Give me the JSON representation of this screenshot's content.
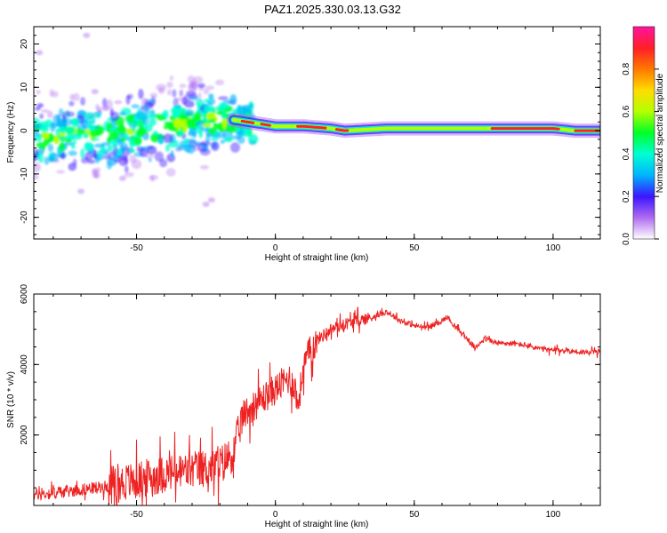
{
  "figure_title": "PAZ1.2025.330.03.13.G32",
  "chart_data": [
    {
      "type": "heatmap",
      "title": "PAZ1.2025.330.03.13.G32",
      "xlabel": "Height of straight line (km)",
      "ylabel": "Frequency (Hz)",
      "xlim": [
        -87,
        117
      ],
      "ylim": [
        -25,
        24
      ],
      "xticks": [
        -50,
        0,
        50,
        100
      ],
      "xtick_labels": [
        "-50",
        "0",
        "50",
        "100"
      ],
      "yticks": [
        -20,
        -10,
        0,
        10,
        20
      ],
      "ytick_labels": [
        "-20",
        "-10",
        "0",
        "10",
        "20"
      ],
      "grid": false,
      "ridge": {
        "description_points_x": [
          -87,
          -60,
          -40,
          -30,
          -20,
          -15,
          -10,
          -5,
          0,
          5,
          10,
          20,
          25,
          40,
          60,
          80,
          100,
          108,
          117
        ],
        "frequency_hz": [
          -1.5,
          -1,
          1,
          2,
          3,
          2.5,
          2,
          1.5,
          1,
          1,
          1,
          0.5,
          0,
          0.5,
          0.5,
          0.5,
          0.5,
          0,
          0
        ]
      },
      "colorbar": {
        "label": "Normalized spectral amplitude",
        "range": [
          0,
          1
        ],
        "ticks": [
          0.0,
          0.2,
          0.4,
          0.6,
          0.8
        ],
        "tick_labels": [
          "0.0",
          "0.2",
          "0.4",
          "0.6",
          "0.8"
        ],
        "colors": [
          "#ffffff",
          "#b06cf0",
          "#3c14ff",
          "#00b4ff",
          "#00ffd2",
          "#00ff28",
          "#b4ff00",
          "#ffdc00",
          "#ff7800",
          "#ff1e28",
          "#ff14a0"
        ]
      }
    },
    {
      "type": "line",
      "title": "",
      "xlabel": "Height of straight line (km)",
      "ylabel": "SNR (10 * v/v)",
      "xlim": [
        -87,
        117
      ],
      "ylim": [
        0,
        6000
      ],
      "xticks": [
        -50,
        0,
        50,
        100
      ],
      "xtick_labels": [
        "-50",
        "0",
        "50",
        "100"
      ],
      "yticks": [
        2000,
        4000,
        6000
      ],
      "ytick_labels": [
        "2000",
        "4000",
        "6000"
      ],
      "series": [
        {
          "name": "SNR",
          "color": "#ee2222",
          "x": [
            -87,
            -80,
            -70,
            -60,
            -55,
            -50,
            -45,
            -40,
            -35,
            -30,
            -25,
            -20,
            -15,
            -12,
            -10,
            -5,
            0,
            3,
            5,
            7,
            8,
            9,
            10,
            12,
            15,
            20,
            25,
            30,
            35,
            40,
            45,
            50,
            55,
            60,
            62,
            65,
            70,
            72,
            75,
            80,
            85,
            90,
            95,
            100,
            105,
            110,
            117
          ],
          "y": [
            300,
            350,
            450,
            550,
            650,
            700,
            800,
            900,
            950,
            1000,
            1050,
            1150,
            1500,
            2500,
            2700,
            3000,
            3300,
            3500,
            3600,
            3400,
            2800,
            3300,
            3900,
            4300,
            4700,
            5000,
            5150,
            5250,
            5350,
            5500,
            5250,
            5100,
            5050,
            5250,
            5350,
            5050,
            4650,
            4450,
            4750,
            4600,
            4600,
            4550,
            4450,
            4400,
            4400,
            4350,
            4350
          ]
        }
      ]
    }
  ]
}
